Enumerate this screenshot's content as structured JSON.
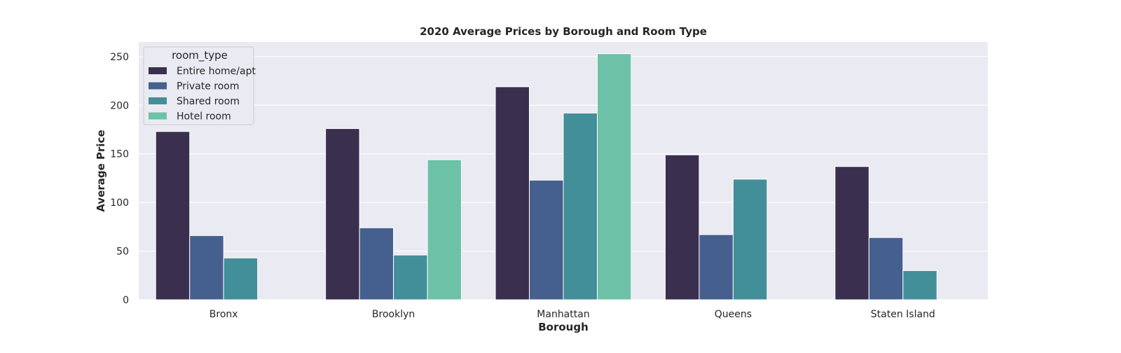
{
  "chart_data": {
    "type": "bar",
    "title": "2020 Average Prices by Borough and Room Type",
    "xlabel": "Borough",
    "ylabel": "Average Price",
    "categories": [
      "Bronx",
      "Brooklyn",
      "Manhattan",
      "Queens",
      "Staten Island"
    ],
    "series": [
      {
        "name": "Entire home/apt",
        "color": "#3b2f4f",
        "values": [
          173,
          176,
          219,
          149,
          137
        ]
      },
      {
        "name": "Private room",
        "color": "#45608f",
        "values": [
          66,
          74,
          123,
          67,
          64
        ]
      },
      {
        "name": "Shared room",
        "color": "#428e99",
        "values": [
          43,
          46,
          192,
          124,
          30
        ]
      },
      {
        "name": "Hotel room",
        "color": "#6dc1a6",
        "values": [
          null,
          144,
          253,
          null,
          null
        ]
      }
    ],
    "ylim": [
      0,
      265
    ],
    "yticks": [
      0,
      50,
      100,
      150,
      200,
      250
    ],
    "grid": true,
    "legend": {
      "title": "room_type",
      "placement": "top-left"
    },
    "background_color": "#eaeaf2"
  }
}
